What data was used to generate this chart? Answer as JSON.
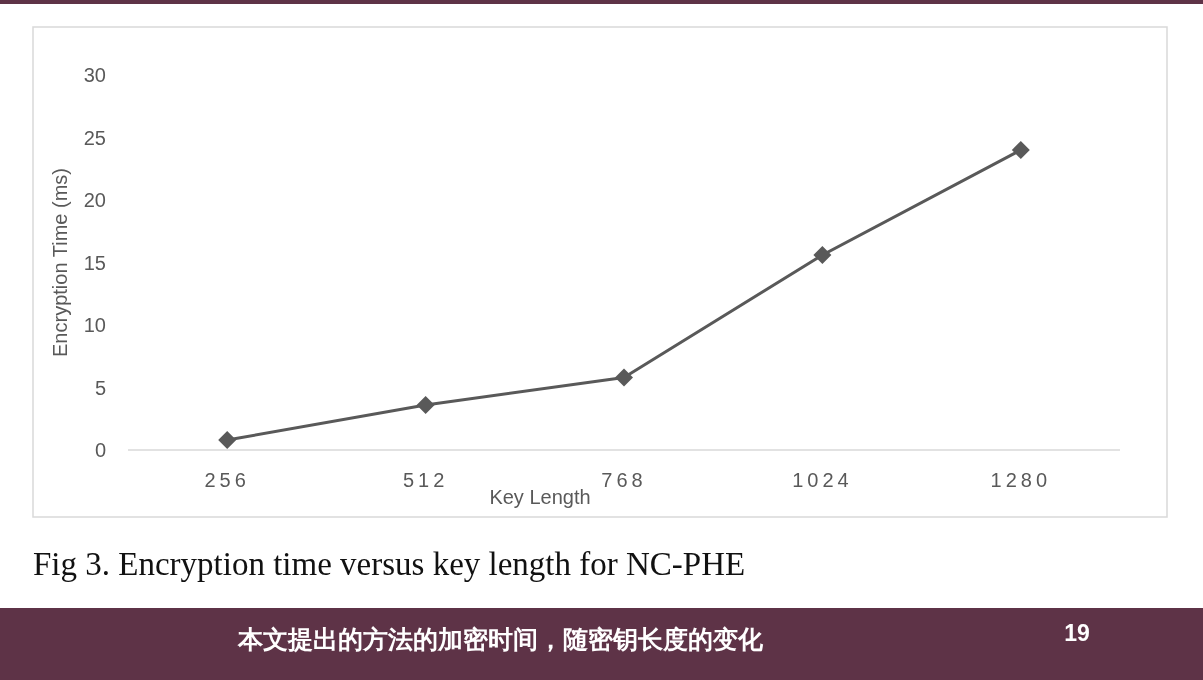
{
  "chart_data": {
    "type": "line",
    "categories": [
      "256",
      "512",
      "768",
      "1024",
      "1280"
    ],
    "series": [
      {
        "color": "#595959",
        "values": [
          0.8,
          3.6,
          5.8,
          15.6,
          24.0
        ]
      }
    ],
    "xlabel": "Key Length",
    "ylabel": "Encryption Time (ms)",
    "ylim": [
      0,
      30
    ],
    "yticks": [
      0,
      5,
      10,
      15,
      20,
      25,
      30
    ],
    "marker": "diamond",
    "line_style": "solid",
    "annotations": [
      "Fig 3. Encryption time versus key length for NC-PHE",
      "本文提出的方法的加密时间，随密钥长度的变化",
      "19"
    ]
  }
}
